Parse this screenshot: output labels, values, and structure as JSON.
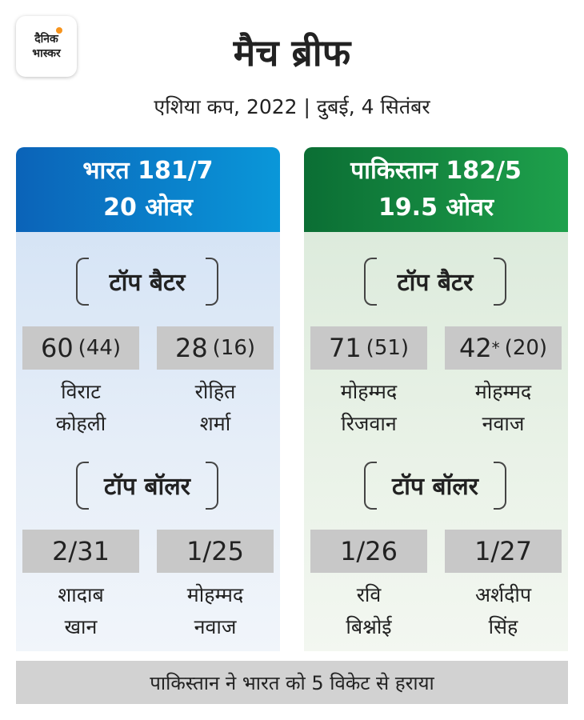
{
  "brand": {
    "line1": "दैनिक",
    "line2": "भास्कर"
  },
  "title": "मैच ब्रीफ",
  "subtitle": "एशिया कप, 2022 | दुबई, 4 सितंबर",
  "colors": {
    "india": "#0a7fcd",
    "pakistan": "#14874a",
    "accent_dot": "#f7941d"
  },
  "teams": [
    {
      "score_line": "भारत 181/7",
      "overs_line": "20 ओवर",
      "batting_label": "टॉप बैटर",
      "bowling_label": "टॉप बॉलर",
      "batters": [
        {
          "runs": "60",
          "balls": "(44)",
          "name1": "विराट",
          "name2": "कोहली"
        },
        {
          "runs": "28",
          "balls": "(16)",
          "name1": "रोहित",
          "name2": "शर्मा"
        }
      ],
      "bowlers": [
        {
          "figures": "2/31",
          "name1": "शादाब",
          "name2": "खान"
        },
        {
          "figures": "1/25",
          "name1": "मोहम्मद",
          "name2": "नवाज"
        }
      ]
    },
    {
      "score_line": "पाकिस्तान 182/5",
      "overs_line": "19.5 ओवर",
      "batting_label": "टॉप बैटर",
      "bowling_label": "टॉप बॉलर",
      "batters": [
        {
          "runs": "71",
          "not_out": "",
          "balls": "(51)",
          "name1": "मोहम्मद",
          "name2": "रिजवान"
        },
        {
          "runs": "42",
          "not_out": "*",
          "balls": "(20)",
          "name1": "मोहम्मद",
          "name2": "नवाज"
        }
      ],
      "bowlers": [
        {
          "figures": "1/26",
          "name1": "रवि",
          "name2": "बिश्नोई"
        },
        {
          "figures": "1/27",
          "name1": "अर्शदीप",
          "name2": "सिंह"
        }
      ]
    }
  ],
  "result": "पाकिस्तान ने भारत को 5 विकेट से हराया"
}
